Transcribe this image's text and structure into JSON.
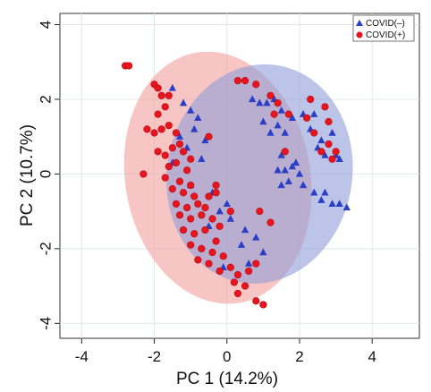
{
  "chart_data": {
    "type": "scatter",
    "title": "",
    "xlabel": "PC 1 (14.2%)",
    "ylabel": "PC 2 (10.7%)",
    "xlim": [
      -4.6,
      5.3
    ],
    "ylim": [
      -4.4,
      4.3
    ],
    "xticks": [
      -4,
      -2,
      0,
      2,
      4
    ],
    "yticks": [
      -4,
      -2,
      0,
      2,
      4
    ],
    "grid": true,
    "legend_position": "top-right",
    "colors": {
      "positive": "#e8141e",
      "negative": "#2a3fc4",
      "positive_ellipse": "#f2a09c",
      "negative_ellipse": "#8f9fd9"
    },
    "ellipses": [
      {
        "series": "COVID(+)",
        "cx": -0.25,
        "cy": -0.1,
        "rx": 2.55,
        "ry": 3.4,
        "angle_deg": -10
      },
      {
        "series": "COVID(-)",
        "cx": 0.9,
        "cy": 0.0,
        "rx": 2.55,
        "ry": 2.95,
        "angle_deg": 10
      }
    ],
    "series": [
      {
        "name": "COVID(–)",
        "marker": "triangle",
        "points": [
          [
            -1.5,
            2.3
          ],
          [
            -1.2,
            1.9
          ],
          [
            -1.0,
            1.7
          ],
          [
            -0.8,
            1.5
          ],
          [
            -0.9,
            1.2
          ],
          [
            -1.3,
            1.0
          ],
          [
            -0.6,
            0.9
          ],
          [
            -1.1,
            0.7
          ],
          [
            -0.7,
            0.4
          ],
          [
            -1.5,
            0.3
          ],
          [
            -1.0,
            -0.3
          ],
          [
            -0.4,
            -0.5
          ],
          [
            0.0,
            -0.8
          ],
          [
            -0.2,
            -1.0
          ],
          [
            0.1,
            -1.2
          ],
          [
            -0.5,
            -1.4
          ],
          [
            0.5,
            -1.5
          ],
          [
            0.8,
            -1.7
          ],
          [
            0.4,
            -1.9
          ],
          [
            1.0,
            -2.1
          ],
          [
            0.6,
            -2.4
          ],
          [
            -0.1,
            -2.5
          ],
          [
            0.7,
            2.0
          ],
          [
            0.9,
            1.9
          ],
          [
            1.1,
            1.9
          ],
          [
            1.3,
            2.0
          ],
          [
            1.5,
            1.7
          ],
          [
            1.0,
            1.4
          ],
          [
            1.4,
            1.3
          ],
          [
            1.8,
            1.5
          ],
          [
            2.1,
            1.6
          ],
          [
            2.4,
            1.6
          ],
          [
            1.2,
            1.1
          ],
          [
            1.6,
            1.1
          ],
          [
            2.3,
            1.2
          ],
          [
            2.6,
            0.9
          ],
          [
            2.9,
            1.1
          ],
          [
            2.5,
            0.7
          ],
          [
            1.5,
            0.5
          ],
          [
            1.9,
            0.3
          ],
          [
            2.7,
            0.5
          ],
          [
            3.0,
            0.5
          ],
          [
            3.1,
            0.4
          ],
          [
            1.4,
            0.1
          ],
          [
            1.6,
            0.1
          ],
          [
            1.8,
            0.2
          ],
          [
            2.0,
            0.0
          ],
          [
            1.7,
            -0.2
          ],
          [
            2.1,
            -0.3
          ],
          [
            1.5,
            -0.3
          ],
          [
            2.4,
            -0.5
          ],
          [
            2.7,
            -0.5
          ],
          [
            2.9,
            -0.8
          ],
          [
            3.1,
            -0.8
          ],
          [
            3.3,
            -0.9
          ],
          [
            2.6,
            -0.7
          ]
        ]
      },
      {
        "name": "COVID(+)",
        "marker": "circle",
        "points": [
          [
            -2.8,
            2.9
          ],
          [
            -2.7,
            2.9
          ],
          [
            -2.0,
            2.4
          ],
          [
            -1.9,
            2.3
          ],
          [
            -1.8,
            2.1
          ],
          [
            -1.6,
            2.1
          ],
          [
            -1.7,
            1.8
          ],
          [
            -1.9,
            1.6
          ],
          [
            -2.2,
            1.2
          ],
          [
            -2.0,
            1.1
          ],
          [
            -1.8,
            1.2
          ],
          [
            -1.6,
            1.3
          ],
          [
            -1.4,
            1.1
          ],
          [
            -1.3,
            0.8
          ],
          [
            -1.9,
            0.6
          ],
          [
            -1.7,
            0.5
          ],
          [
            -1.5,
            0.7
          ],
          [
            -1.2,
            0.6
          ],
          [
            -1.0,
            0.4
          ],
          [
            -1.6,
            0.2
          ],
          [
            -1.4,
            0.3
          ],
          [
            -1.1,
            0.1
          ],
          [
            -1.7,
            -0.1
          ],
          [
            -1.3,
            -0.2
          ],
          [
            -1.0,
            -0.3
          ],
          [
            -1.2,
            -0.5
          ],
          [
            -1.5,
            -0.4
          ],
          [
            -0.9,
            -0.6
          ],
          [
            -1.4,
            -0.8
          ],
          [
            -1.1,
            -0.9
          ],
          [
            -0.8,
            -0.8
          ],
          [
            -0.5,
            -0.6
          ],
          [
            -0.3,
            -0.5
          ],
          [
            -0.6,
            -0.9
          ],
          [
            -1.3,
            -1.1
          ],
          [
            -1.0,
            -1.2
          ],
          [
            -0.7,
            -1.1
          ],
          [
            -0.4,
            -1.2
          ],
          [
            -0.2,
            -1.4
          ],
          [
            -1.2,
            -1.5
          ],
          [
            -0.9,
            -1.6
          ],
          [
            -0.6,
            -1.5
          ],
          [
            -0.3,
            -1.8
          ],
          [
            -1.0,
            -1.9
          ],
          [
            -0.7,
            -2.0
          ],
          [
            -0.4,
            -2.1
          ],
          [
            -0.1,
            -2.2
          ],
          [
            -0.8,
            -2.3
          ],
          [
            -0.5,
            -2.4
          ],
          [
            -0.2,
            -2.6
          ],
          [
            0.1,
            -2.5
          ],
          [
            0.3,
            -2.7
          ],
          [
            0.6,
            -2.6
          ],
          [
            0.8,
            -2.4
          ],
          [
            0.2,
            -2.9
          ],
          [
            0.5,
            -3.0
          ],
          [
            0.3,
            -3.2
          ],
          [
            0.5,
            2.5
          ],
          [
            0.3,
            2.5
          ],
          [
            0.8,
            2.4
          ],
          [
            1.2,
            2.1
          ],
          [
            1.4,
            1.9
          ],
          [
            1.7,
            1.6
          ],
          [
            2.3,
            2.0
          ],
          [
            2.2,
            1.5
          ],
          [
            2.7,
            1.8
          ],
          [
            2.8,
            1.4
          ],
          [
            1.3,
            1.6
          ],
          [
            2.4,
            1.1
          ],
          [
            2.6,
            0.6
          ],
          [
            2.8,
            0.8
          ],
          [
            3.0,
            0.6
          ],
          [
            2.9,
            0.4
          ],
          [
            1.6,
            0.6
          ],
          [
            0.9,
            -1.0
          ],
          [
            1.2,
            -1.3
          ],
          [
            0.8,
            -3.4
          ],
          [
            1.0,
            -3.5
          ],
          [
            -0.3,
            -0.3
          ],
          [
            0.1,
            -1.0
          ],
          [
            -0.5,
            1.0
          ],
          [
            -2.3,
            0.0
          ]
        ]
      }
    ],
    "legend": [
      {
        "label": "COVID(–)",
        "marker": "triangle"
      },
      {
        "label": "COVID(+)",
        "marker": "circle"
      }
    ]
  }
}
